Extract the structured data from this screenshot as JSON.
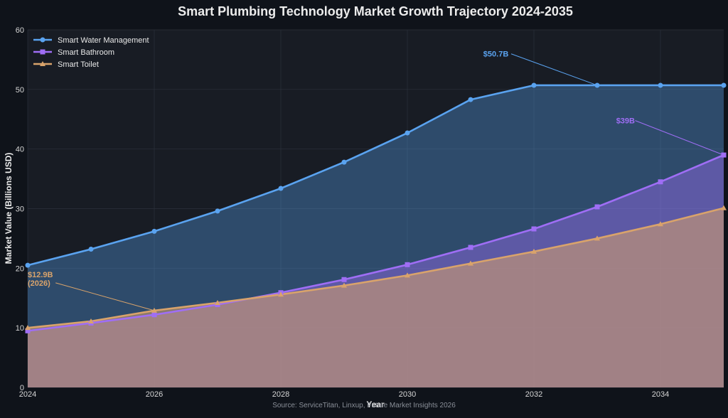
{
  "chart_data": {
    "type": "area",
    "title": "Smart Plumbing Technology Market Growth Trajectory 2024-2035",
    "xlabel": "Year",
    "ylabel": "Market Value (Billions USD)",
    "xlim": [
      2024,
      2035
    ],
    "ylim": [
      0,
      60
    ],
    "x_ticks": [
      2024,
      2026,
      2028,
      2030,
      2032,
      2034
    ],
    "y_ticks": [
      0,
      10,
      20,
      30,
      40,
      50,
      60
    ],
    "x": [
      2024,
      2025,
      2026,
      2027,
      2028,
      2029,
      2030,
      2031,
      2032,
      2033,
      2034,
      2035
    ],
    "grid": true,
    "legend_position": "top-left",
    "series": [
      {
        "name": "Smart Water Management",
        "color": "#5aa3f0",
        "marker": "circle",
        "values": [
          20.5,
          23.2,
          26.2,
          29.6,
          33.4,
          37.8,
          42.7,
          48.3,
          50.7,
          50.7,
          50.7,
          50.7
        ]
      },
      {
        "name": "Smart Bathroom",
        "color": "#9f6ef5",
        "marker": "square",
        "values": [
          9.5,
          10.8,
          12.2,
          13.9,
          15.9,
          18.1,
          20.6,
          23.5,
          26.6,
          30.3,
          34.5,
          39.0
        ]
      },
      {
        "name": "Smart Toilet",
        "color": "#d9a36b",
        "marker": "triangle",
        "values": [
          10.0,
          11.1,
          12.9,
          14.2,
          15.6,
          17.1,
          18.8,
          20.8,
          22.8,
          25.0,
          27.4,
          30.1
        ]
      }
    ],
    "annotations": [
      {
        "text": "$50.7B",
        "series": "Smart Water Management",
        "x": 2033,
        "y": 50.7,
        "text_x": 2031.2,
        "text_y": 55.5,
        "color": "#5aa3f0"
      },
      {
        "text": "$39B",
        "series": "Smart Bathroom",
        "x": 2035,
        "y": 39.0,
        "text_x": 2033.3,
        "text_y": 44.3,
        "color": "#9f6ef5"
      },
      {
        "text": "$12.9B\n(2026)",
        "series": "Smart Toilet",
        "x": 2026,
        "y": 12.9,
        "text_x": 2024.0,
        "text_y": 18.5,
        "color": "#d9a36b"
      }
    ],
    "source": "Source: ServiceTitan, Linxup, Future Market Insights 2026"
  }
}
